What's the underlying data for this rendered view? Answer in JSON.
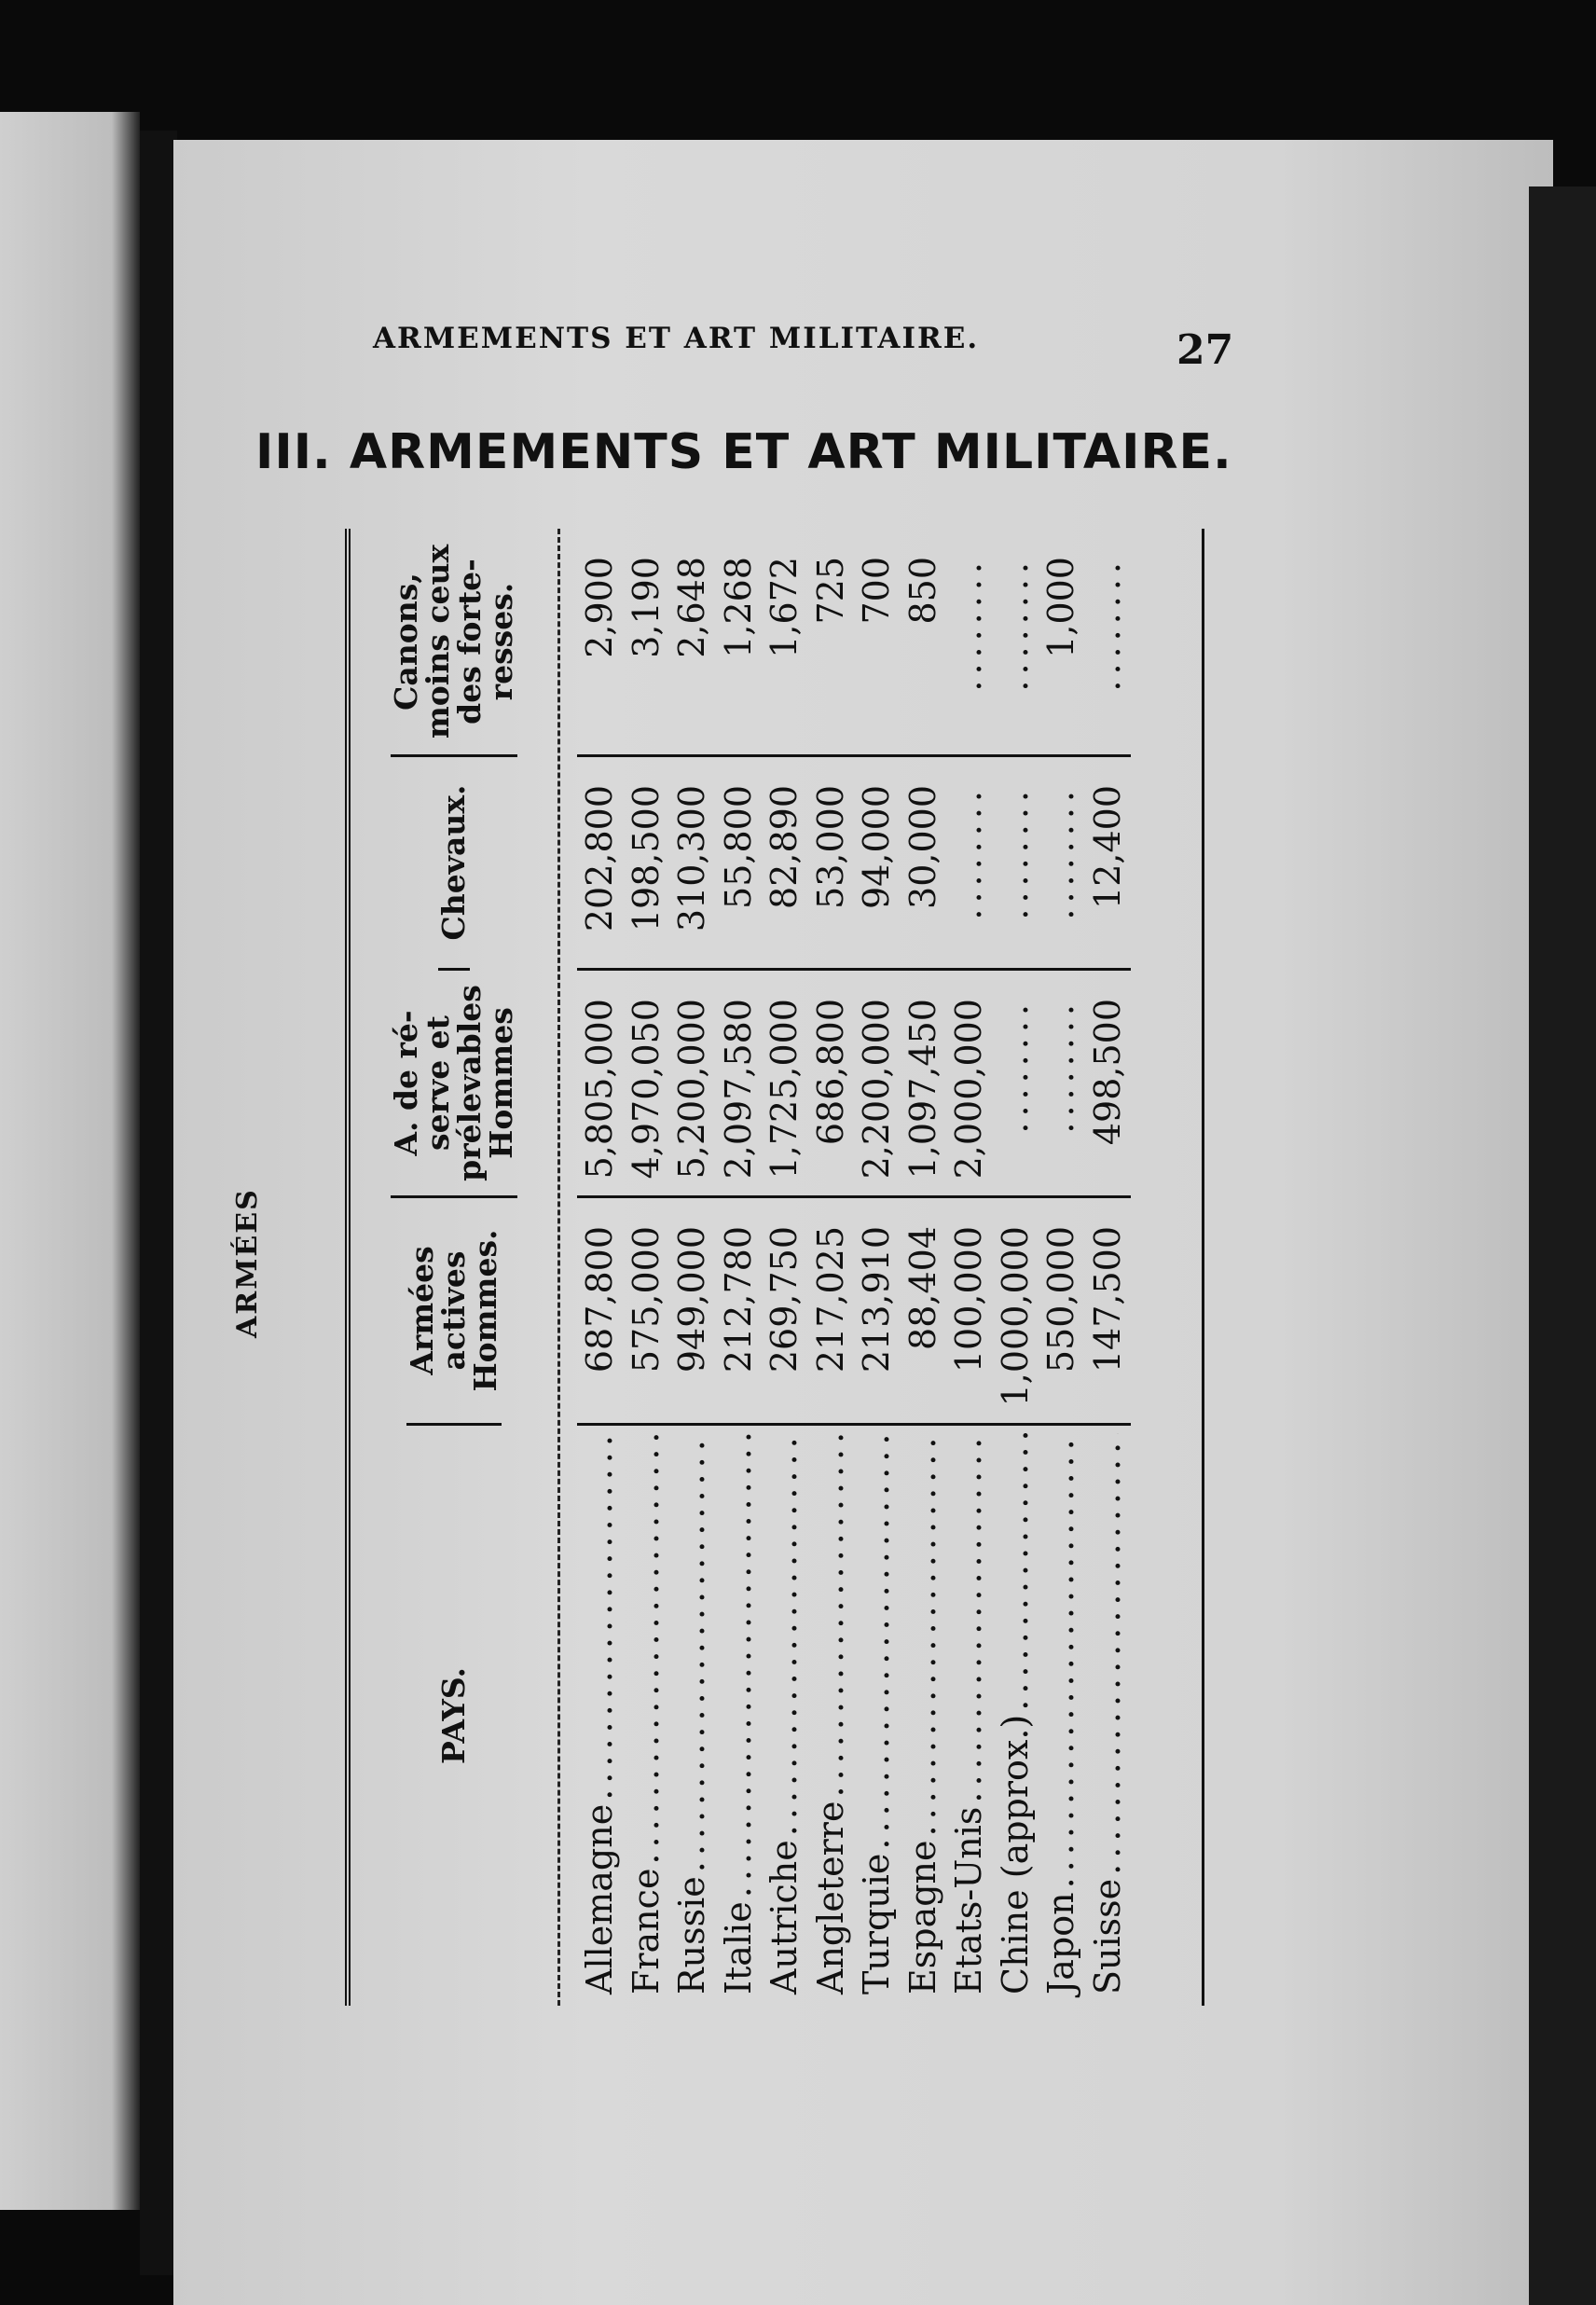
{
  "header": {
    "running_title": "ARMEMENTS ET ART MILITAIRE.",
    "page_number": "27"
  },
  "title": "III. ARMEMENTS ET ART MILITAIRE.",
  "section_label": "ARMÉES",
  "table": {
    "columns": [
      "PAYS.",
      "Armées\nactives\nHommes.",
      "A. de ré-\nserve et\nprélevables\nHommes",
      "Chevaux.",
      "Canons,\nmoins ceux\ndes forte-\nresses."
    ],
    "rows": [
      [
        "Allemagne",
        "687,800",
        "5,805,000",
        "202,800",
        "2,900"
      ],
      [
        "France",
        "575,000",
        "4,970,050",
        "198,500",
        "3,190"
      ],
      [
        "Russie",
        "949,000",
        "5,200,000",
        "310,300",
        "2,648"
      ],
      [
        "Italie",
        "212,780",
        "2,097,580",
        "55,800",
        "1,268"
      ],
      [
        "Autriche",
        "269,750",
        "1,725,000",
        "82,890",
        "1,672"
      ],
      [
        "Angleterre",
        "217,025",
        "686,800",
        "53,000",
        "725"
      ],
      [
        "Turquie",
        "213,910",
        "2,200,000",
        "94,000",
        "700"
      ],
      [
        "Espagne",
        "88,404",
        "1,097,450",
        "30,000",
        "850"
      ],
      [
        "Etats-Unis",
        "100,000",
        "2,000,000",
        "",
        ""
      ],
      [
        "Chine (approx.)",
        "1,000,000",
        "",
        "",
        ""
      ],
      [
        "Japon",
        "550,000",
        "",
        "",
        "1,000"
      ],
      [
        "Suisse",
        "147,500",
        "498,500",
        "12,400",
        ""
      ]
    ]
  }
}
